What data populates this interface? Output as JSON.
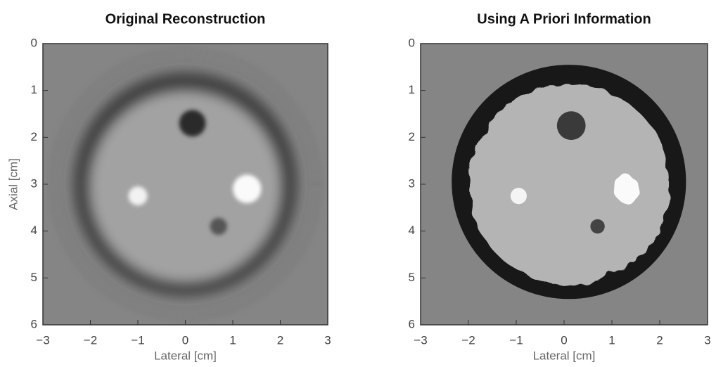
{
  "chart_data": [
    {
      "type": "image",
      "title": "Original Reconstruction",
      "xlabel": "Lateral [cm]",
      "ylabel": "Axial [cm]",
      "xlim": [
        -3,
        3
      ],
      "ylim": [
        0,
        6
      ],
      "y_inverted": true,
      "xticks": [
        {
          "value": -3,
          "label": "−3"
        },
        {
          "value": -2,
          "label": "−2"
        },
        {
          "value": -1,
          "label": "−1"
        },
        0,
        1,
        2,
        3
      ],
      "yticks": [
        0,
        1,
        2,
        3,
        4,
        5,
        6
      ],
      "style": "blurred"
    },
    {
      "type": "image",
      "title": "Using A Priori Information",
      "xlabel": "Lateral [cm]",
      "xlim": [
        -3,
        3
      ],
      "ylim": [
        0,
        6
      ],
      "y_inverted": true,
      "xticks": [
        {
          "value": -3,
          "label": "−3"
        },
        {
          "value": -2,
          "label": "−2"
        },
        {
          "value": -1,
          "label": "−1"
        },
        0,
        1,
        2,
        3
      ],
      "yticks": [
        0,
        1,
        2,
        3,
        4,
        5,
        6
      ],
      "style": "sharp"
    }
  ]
}
